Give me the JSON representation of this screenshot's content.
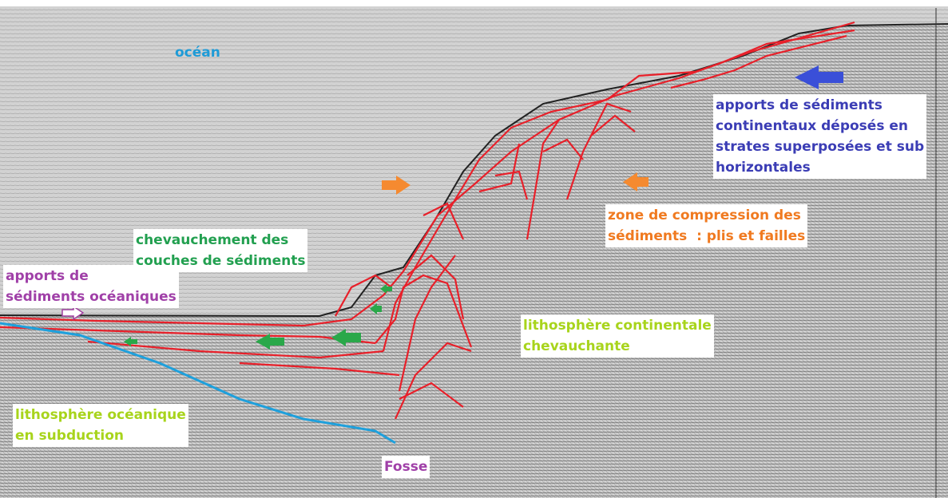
{
  "labels": {
    "ocean": {
      "lines": [
        "océan"
      ]
    },
    "continental_sediments": {
      "lines": [
        "apports de sédiments",
        "continentaux déposés en",
        "strates superposées et sub",
        "horizontales"
      ]
    },
    "compression": {
      "lines": [
        "zone de compression des",
        "sédiments  : plis et failles"
      ]
    },
    "thrusting": {
      "lines": [
        "chevauchement des",
        "couches de sédiments"
      ]
    },
    "oceanic_sediments": {
      "lines": [
        "apports de",
        "sédiments océaniques"
      ]
    },
    "continental_lithosphere": {
      "lines": [
        "lithosphère continentale",
        "chevauchante"
      ]
    },
    "oceanic_lithosphere": {
      "lines": [
        "lithosphère océanique",
        "en subduction"
      ]
    },
    "trench": {
      "lines": [
        "Fosse"
      ]
    }
  }
}
